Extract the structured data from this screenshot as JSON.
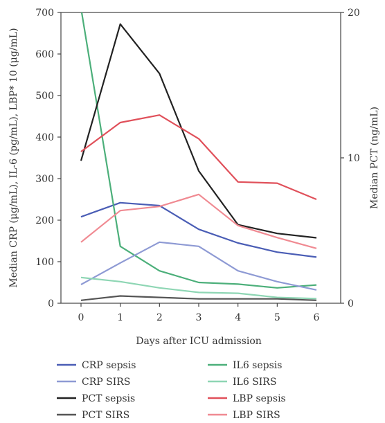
{
  "chart_data": {
    "type": "line",
    "title": "",
    "xlabel": "Days after ICU admission",
    "ylabel_left": "Median CRP (μg/mL), IL-6 (pg/mL), LBP* 10 (μg/mL)",
    "ylabel_right": "Median PCT (ng/mL)",
    "x": [
      0,
      1,
      2,
      3,
      4,
      5,
      6
    ],
    "x_ticks": [
      "0",
      "1",
      "2",
      "3",
      "4",
      "5",
      "6"
    ],
    "ylim_left": [
      0,
      700
    ],
    "yticks_left": [
      "0",
      "100",
      "200",
      "300",
      "400",
      "500",
      "600",
      "700"
    ],
    "ylim_right": [
      0,
      20
    ],
    "yticks_right": [
      "0",
      "10",
      "20"
    ],
    "grid": false,
    "legend_position": "bottom",
    "series": [
      {
        "name": "CRP sepsis",
        "axis": "left",
        "color": "#4a5db5",
        "values": [
          208,
          242,
          235,
          178,
          145,
          123,
          111
        ]
      },
      {
        "name": "IL6 sepsis",
        "axis": "left",
        "color": "#4caf7a",
        "values": [
          710,
          137,
          78,
          50,
          46,
          37,
          44
        ]
      },
      {
        "name": "CRP SIRS",
        "axis": "left",
        "color": "#8e9ad4",
        "values": [
          45,
          97,
          147,
          137,
          78,
          52,
          32
        ]
      },
      {
        "name": "IL6 SIRS",
        "axis": "left",
        "color": "#8ed6b4",
        "values": [
          62,
          52,
          37,
          26,
          24,
          14,
          11
        ]
      },
      {
        "name": "PCT sepsis",
        "axis": "right",
        "color": "#222222",
        "values": [
          9.8,
          19.2,
          15.8,
          9.1,
          5.4,
          4.8,
          4.5
        ]
      },
      {
        "name": "LBP sepsis",
        "axis": "left",
        "color": "#e0505a",
        "values": [
          365,
          435,
          453,
          396,
          292,
          289,
          250
        ]
      },
      {
        "name": "PCT SIRS",
        "axis": "right",
        "color": "#555555",
        "values": [
          0.2,
          0.5,
          0.4,
          0.3,
          0.3,
          0.3,
          0.2
        ]
      },
      {
        "name": "LBP SIRS",
        "axis": "left",
        "color": "#f08a92",
        "values": [
          147,
          223,
          233,
          262,
          187,
          158,
          132
        ]
      }
    ]
  }
}
